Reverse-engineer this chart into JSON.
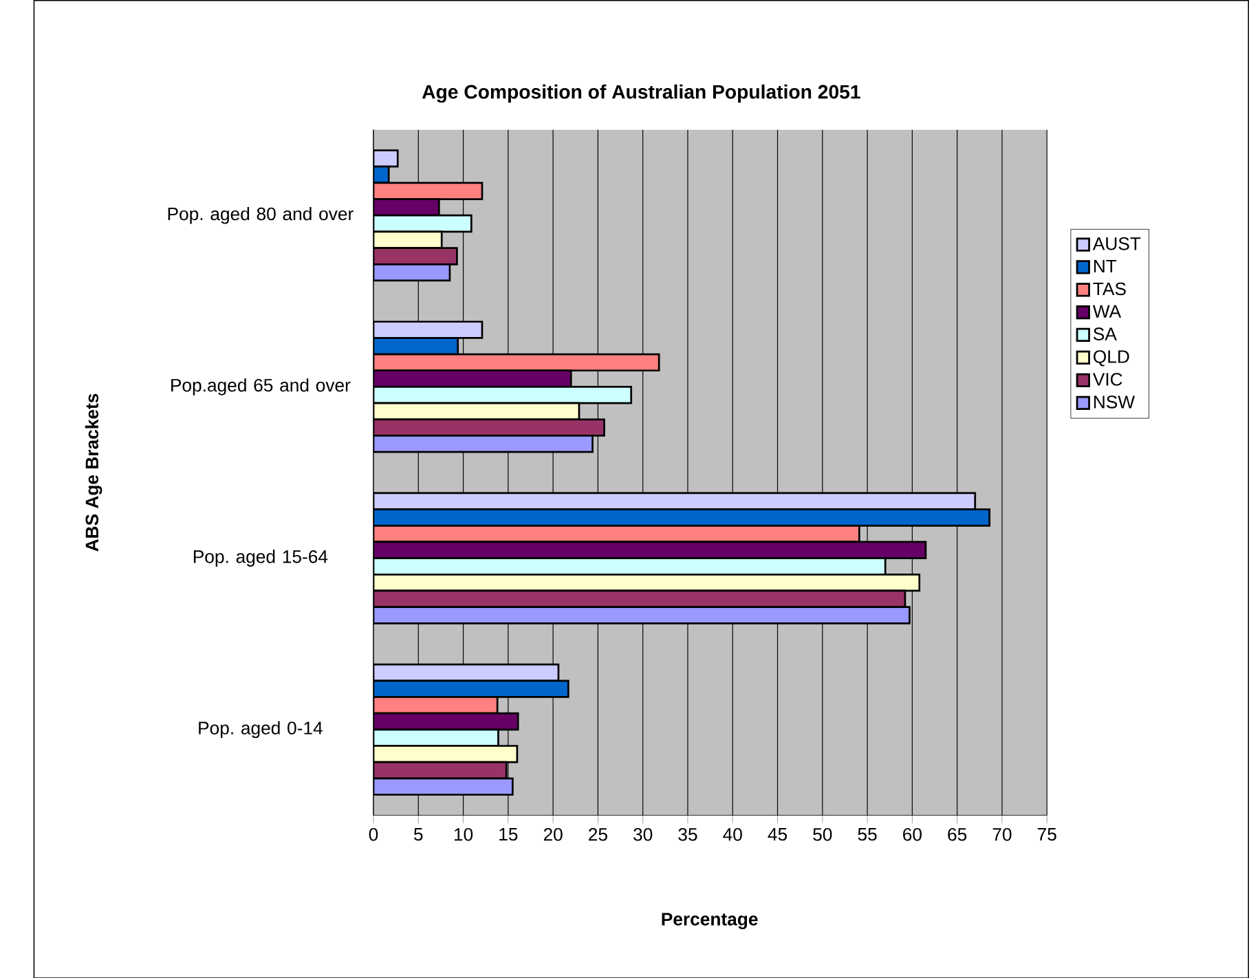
{
  "chart_data": {
    "type": "bar",
    "orientation": "horizontal",
    "title": "Age Composition of Australian Population 2051",
    "xlabel": "Percentage",
    "ylabel": "ABS Age Brackets",
    "categories": [
      "Pop. aged 80 and over",
      "Pop.aged 65 and over",
      "Pop. aged 15-64",
      "Pop. aged 0-14"
    ],
    "series": [
      {
        "name": "AUST",
        "color": "#ccccff",
        "values": [
          2.7,
          12.1,
          67.0,
          20.6
        ]
      },
      {
        "name": "NT",
        "color": "#0066cc",
        "values": [
          1.7,
          9.4,
          68.6,
          21.7
        ]
      },
      {
        "name": "TAS",
        "color": "#ff8080",
        "values": [
          12.1,
          31.8,
          54.1,
          13.8
        ]
      },
      {
        "name": "WA",
        "color": "#660066",
        "values": [
          7.3,
          22.0,
          61.5,
          16.1
        ]
      },
      {
        "name": "SA",
        "color": "#ccffff",
        "values": [
          10.9,
          28.7,
          57.0,
          13.9
        ]
      },
      {
        "name": "QLD",
        "color": "#ffffcc",
        "values": [
          7.6,
          22.9,
          60.8,
          16.0
        ]
      },
      {
        "name": "VIC",
        "color": "#993366",
        "values": [
          9.3,
          25.7,
          59.2,
          14.8
        ]
      },
      {
        "name": "NSW",
        "color": "#9999ff",
        "values": [
          8.5,
          24.4,
          59.7,
          15.5
        ]
      }
    ],
    "xlim": [
      0,
      75
    ],
    "xticks": [
      0,
      5,
      10,
      15,
      20,
      25,
      30,
      35,
      40,
      45,
      50,
      55,
      60,
      65,
      70,
      75
    ],
    "grid": "x",
    "legend": "right"
  }
}
